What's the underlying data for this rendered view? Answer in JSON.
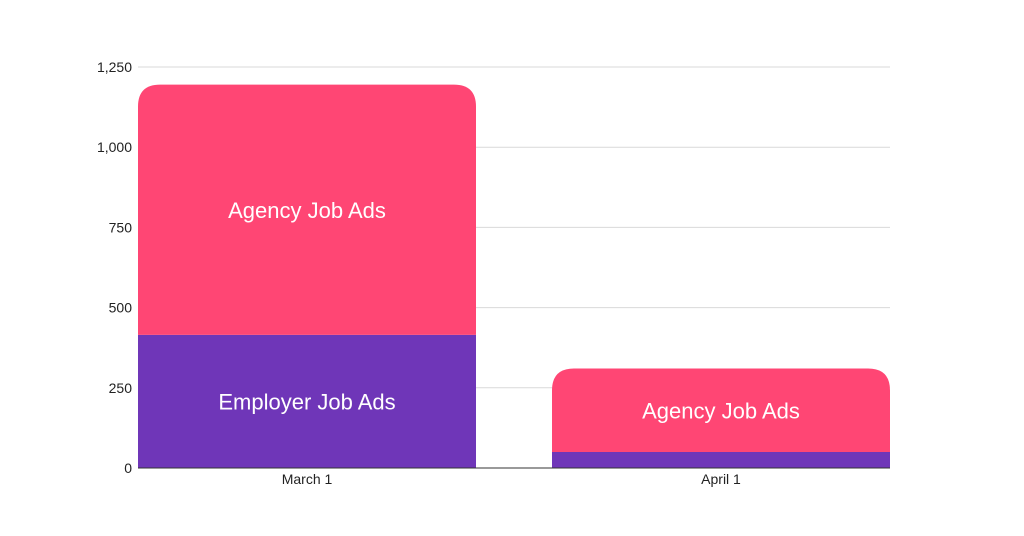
{
  "chart_data": {
    "type": "bar",
    "stacked": true,
    "categories": [
      "March 1",
      "April 1"
    ],
    "series": [
      {
        "values": [
          415,
          50
        ],
        "color": "#6f36b8",
        "segment_labels": [
          "Employer Job Ads",
          ""
        ]
      },
      {
        "values": [
          780,
          260
        ],
        "color": "#ff4674",
        "segment_labels": [
          "Agency Job Ads",
          "Agency Job Ads"
        ]
      }
    ],
    "y_ticks": [
      "0",
      "250",
      "500",
      "750",
      "1,000",
      "1,250"
    ],
    "y_tick_values": [
      0,
      250,
      500,
      750,
      1000,
      1250
    ],
    "ylim": [
      0,
      1250
    ],
    "grid": true,
    "legend": "none"
  }
}
